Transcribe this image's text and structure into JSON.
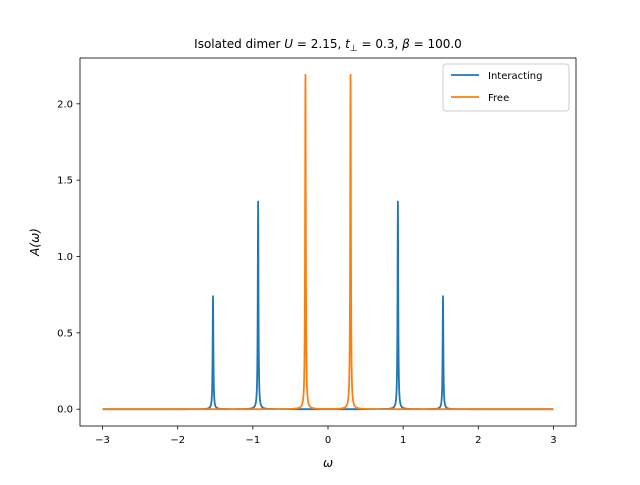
{
  "chart_data": {
    "type": "line",
    "title": "Isolated dimer U = 2.15, t⊥ = 0.3, β = 100.0",
    "title_parts": {
      "prefix": "Isolated dimer ",
      "u_sym": "U",
      "u_val": " = 2.15, ",
      "t_sym": "t",
      "t_sub": "⊥",
      "t_val": " = 0.3, ",
      "b_sym": "β",
      "b_val": " = 100.0"
    },
    "xlabel": "ω",
    "ylabel": "A(ω)",
    "xlim": [
      -3.3,
      3.3
    ],
    "ylim": [
      -0.11,
      2.3
    ],
    "x_ticks": [
      -3,
      -2,
      -1,
      0,
      1,
      2,
      3
    ],
    "x_tick_labels": [
      "−3",
      "−2",
      "−1",
      "0",
      "1",
      "2",
      "3"
    ],
    "y_ticks": [
      0.0,
      0.5,
      1.0,
      1.5,
      2.0
    ],
    "y_tick_labels": [
      "0.0",
      "0.5",
      "1.0",
      "1.5",
      "2.0"
    ],
    "grid": false,
    "legend_position": "top-right",
    "x_range": [
      -3,
      3
    ],
    "series": [
      {
        "name": "Interacting",
        "color": "#1f77b4",
        "peaks": [
          {
            "x": -1.53,
            "height": 0.74
          },
          {
            "x": -0.93,
            "height": 1.36
          },
          {
            "x": 0.93,
            "height": 1.36
          },
          {
            "x": 1.53,
            "height": 0.74
          }
        ],
        "peak_width": 0.0055
      },
      {
        "name": "Free",
        "color": "#ff7f0e",
        "peaks": [
          {
            "x": -0.3,
            "height": 2.19
          },
          {
            "x": 0.3,
            "height": 2.19
          }
        ],
        "peak_width": 0.0055
      }
    ]
  }
}
